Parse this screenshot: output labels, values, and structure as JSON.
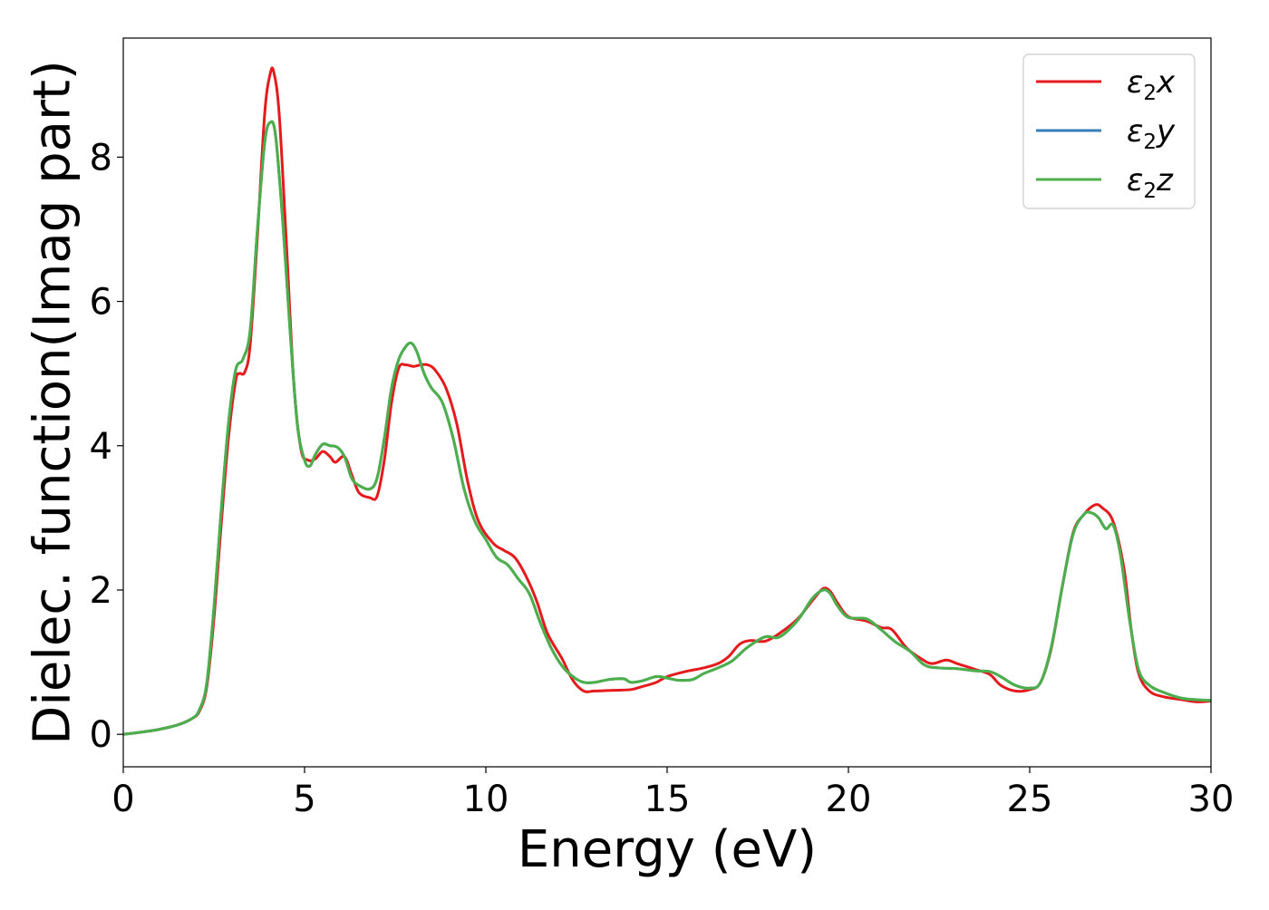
{
  "chart_data": {
    "type": "line",
    "title": "",
    "xlabel": "Energy (eV)",
    "ylabel": "Dielec. function(Imag part)",
    "xlim": [
      0,
      30
    ],
    "ylim": [
      -0.45,
      9.65
    ],
    "xticks": [
      0,
      5,
      10,
      15,
      20,
      25,
      30
    ],
    "yticks": [
      0,
      2,
      4,
      6,
      8
    ],
    "grid": false,
    "legend_position": "top-right",
    "series": [
      {
        "name": "ε₂x",
        "legend_base": "ε",
        "legend_sub": "2",
        "legend_suffix": "x",
        "color": "#e41a1c",
        "points": [
          [
            0,
            0
          ],
          [
            0.5,
            0.03
          ],
          [
            1.0,
            0.07
          ],
          [
            1.5,
            0.13
          ],
          [
            1.9,
            0.22
          ],
          [
            2.1,
            0.32
          ],
          [
            2.3,
            0.65
          ],
          [
            2.5,
            1.6
          ],
          [
            2.7,
            2.9
          ],
          [
            2.9,
            4.1
          ],
          [
            3.1,
            4.9
          ],
          [
            3.2,
            5.0
          ],
          [
            3.35,
            5.02
          ],
          [
            3.5,
            5.4
          ],
          [
            3.7,
            6.9
          ],
          [
            3.9,
            8.6
          ],
          [
            4.05,
            9.15
          ],
          [
            4.15,
            9.18
          ],
          [
            4.3,
            8.6
          ],
          [
            4.5,
            6.8
          ],
          [
            4.7,
            4.9
          ],
          [
            4.9,
            3.95
          ],
          [
            5.1,
            3.8
          ],
          [
            5.3,
            3.82
          ],
          [
            5.5,
            3.92
          ],
          [
            5.7,
            3.85
          ],
          [
            5.85,
            3.77
          ],
          [
            6.1,
            3.85
          ],
          [
            6.3,
            3.6
          ],
          [
            6.5,
            3.35
          ],
          [
            6.8,
            3.28
          ],
          [
            7.0,
            3.3
          ],
          [
            7.2,
            3.8
          ],
          [
            7.4,
            4.6
          ],
          [
            7.6,
            5.08
          ],
          [
            7.8,
            5.12
          ],
          [
            8.0,
            5.1
          ],
          [
            8.2,
            5.12
          ],
          [
            8.4,
            5.12
          ],
          [
            8.6,
            5.05
          ],
          [
            8.9,
            4.8
          ],
          [
            9.2,
            4.3
          ],
          [
            9.5,
            3.5
          ],
          [
            9.8,
            2.95
          ],
          [
            10.2,
            2.65
          ],
          [
            10.5,
            2.55
          ],
          [
            10.8,
            2.45
          ],
          [
            11.1,
            2.2
          ],
          [
            11.4,
            1.85
          ],
          [
            11.7,
            1.4
          ],
          [
            12.1,
            1.05
          ],
          [
            12.4,
            0.75
          ],
          [
            12.7,
            0.6
          ],
          [
            13.0,
            0.6
          ],
          [
            13.5,
            0.61
          ],
          [
            14.0,
            0.62
          ],
          [
            14.3,
            0.66
          ],
          [
            14.7,
            0.72
          ],
          [
            15.0,
            0.8
          ],
          [
            15.5,
            0.87
          ],
          [
            16.0,
            0.92
          ],
          [
            16.4,
            0.98
          ],
          [
            16.7,
            1.08
          ],
          [
            17.0,
            1.25
          ],
          [
            17.3,
            1.3
          ],
          [
            17.7,
            1.29
          ],
          [
            18.1,
            1.4
          ],
          [
            18.6,
            1.6
          ],
          [
            19.0,
            1.85
          ],
          [
            19.3,
            2.02
          ],
          [
            19.5,
            1.98
          ],
          [
            19.7,
            1.82
          ],
          [
            20.0,
            1.63
          ],
          [
            20.5,
            1.57
          ],
          [
            20.9,
            1.48
          ],
          [
            21.2,
            1.45
          ],
          [
            21.6,
            1.2
          ],
          [
            22.0,
            1.05
          ],
          [
            22.3,
            0.98
          ],
          [
            22.7,
            1.03
          ],
          [
            23.0,
            0.98
          ],
          [
            23.5,
            0.9
          ],
          [
            23.9,
            0.83
          ],
          [
            24.2,
            0.68
          ],
          [
            24.6,
            0.6
          ],
          [
            25.0,
            0.62
          ],
          [
            25.3,
            0.72
          ],
          [
            25.6,
            1.2
          ],
          [
            25.9,
            2.05
          ],
          [
            26.2,
            2.8
          ],
          [
            26.5,
            3.05
          ],
          [
            26.8,
            3.18
          ],
          [
            27.0,
            3.14
          ],
          [
            27.3,
            2.95
          ],
          [
            27.6,
            2.3
          ],
          [
            27.8,
            1.45
          ],
          [
            28.0,
            0.85
          ],
          [
            28.3,
            0.6
          ],
          [
            28.7,
            0.52
          ],
          [
            29.2,
            0.48
          ],
          [
            29.6,
            0.45
          ],
          [
            30.0,
            0.46
          ]
        ]
      },
      {
        "name": "ε₂y",
        "legend_base": "ε",
        "legend_sub": "2",
        "legend_suffix": "y",
        "color": "#377eb8",
        "points": [
          [
            0,
            0
          ],
          [
            0.5,
            0.03
          ],
          [
            1.0,
            0.07
          ],
          [
            1.5,
            0.13
          ],
          [
            1.9,
            0.22
          ],
          [
            2.1,
            0.34
          ],
          [
            2.3,
            0.7
          ],
          [
            2.5,
            1.75
          ],
          [
            2.7,
            3.1
          ],
          [
            2.9,
            4.3
          ],
          [
            3.1,
            5.05
          ],
          [
            3.3,
            5.2
          ],
          [
            3.5,
            5.6
          ],
          [
            3.7,
            7.0
          ],
          [
            3.9,
            8.2
          ],
          [
            4.05,
            8.48
          ],
          [
            4.2,
            8.3
          ],
          [
            4.4,
            7.1
          ],
          [
            4.6,
            5.6
          ],
          [
            4.8,
            4.3
          ],
          [
            5.0,
            3.8
          ],
          [
            5.15,
            3.72
          ],
          [
            5.3,
            3.88
          ],
          [
            5.5,
            4.02
          ],
          [
            5.7,
            4.0
          ],
          [
            5.9,
            3.98
          ],
          [
            6.1,
            3.85
          ],
          [
            6.3,
            3.55
          ],
          [
            6.5,
            3.45
          ],
          [
            6.8,
            3.4
          ],
          [
            7.0,
            3.55
          ],
          [
            7.2,
            4.1
          ],
          [
            7.4,
            4.8
          ],
          [
            7.6,
            5.2
          ],
          [
            7.8,
            5.38
          ],
          [
            7.95,
            5.42
          ],
          [
            8.1,
            5.3
          ],
          [
            8.3,
            5.0
          ],
          [
            8.5,
            4.8
          ],
          [
            8.8,
            4.6
          ],
          [
            9.1,
            4.1
          ],
          [
            9.4,
            3.4
          ],
          [
            9.7,
            2.95
          ],
          [
            10.0,
            2.7
          ],
          [
            10.3,
            2.45
          ],
          [
            10.6,
            2.35
          ],
          [
            10.9,
            2.15
          ],
          [
            11.2,
            1.95
          ],
          [
            11.5,
            1.55
          ],
          [
            11.8,
            1.2
          ],
          [
            12.1,
            0.95
          ],
          [
            12.4,
            0.8
          ],
          [
            12.7,
            0.72
          ],
          [
            13.0,
            0.72
          ],
          [
            13.4,
            0.76
          ],
          [
            13.8,
            0.77
          ],
          [
            14.0,
            0.72
          ],
          [
            14.3,
            0.74
          ],
          [
            14.7,
            0.8
          ],
          [
            15.0,
            0.78
          ],
          [
            15.3,
            0.75
          ],
          [
            15.7,
            0.76
          ],
          [
            16.0,
            0.84
          ],
          [
            16.4,
            0.92
          ],
          [
            16.8,
            1.02
          ],
          [
            17.2,
            1.2
          ],
          [
            17.7,
            1.35
          ],
          [
            18.1,
            1.35
          ],
          [
            18.6,
            1.58
          ],
          [
            19.0,
            1.88
          ],
          [
            19.3,
            2.0
          ],
          [
            19.5,
            1.95
          ],
          [
            19.7,
            1.78
          ],
          [
            20.0,
            1.62
          ],
          [
            20.5,
            1.6
          ],
          [
            20.9,
            1.45
          ],
          [
            21.3,
            1.28
          ],
          [
            21.7,
            1.15
          ],
          [
            22.1,
            0.96
          ],
          [
            22.5,
            0.92
          ],
          [
            23.0,
            0.91
          ],
          [
            23.5,
            0.88
          ],
          [
            23.9,
            0.87
          ],
          [
            24.2,
            0.8
          ],
          [
            24.6,
            0.68
          ],
          [
            25.0,
            0.64
          ],
          [
            25.3,
            0.72
          ],
          [
            25.6,
            1.22
          ],
          [
            25.9,
            2.05
          ],
          [
            26.2,
            2.78
          ],
          [
            26.5,
            3.05
          ],
          [
            26.7,
            3.07
          ],
          [
            26.9,
            3.0
          ],
          [
            27.1,
            2.85
          ],
          [
            27.3,
            2.9
          ],
          [
            27.5,
            2.5
          ],
          [
            27.75,
            1.6
          ],
          [
            28.0,
            0.9
          ],
          [
            28.3,
            0.68
          ],
          [
            28.7,
            0.58
          ],
          [
            29.2,
            0.5
          ],
          [
            29.6,
            0.48
          ],
          [
            30.0,
            0.47
          ]
        ]
      },
      {
        "name": "ε₂z",
        "legend_base": "ε",
        "legend_sub": "2",
        "legend_suffix": "z",
        "color": "#4daf4a",
        "points": [
          [
            0,
            0
          ],
          [
            0.5,
            0.03
          ],
          [
            1.0,
            0.07
          ],
          [
            1.5,
            0.13
          ],
          [
            1.9,
            0.22
          ],
          [
            2.1,
            0.34
          ],
          [
            2.3,
            0.7
          ],
          [
            2.5,
            1.75
          ],
          [
            2.7,
            3.1
          ],
          [
            2.9,
            4.3
          ],
          [
            3.1,
            5.05
          ],
          [
            3.3,
            5.2
          ],
          [
            3.5,
            5.6
          ],
          [
            3.7,
            7.0
          ],
          [
            3.9,
            8.2
          ],
          [
            4.05,
            8.48
          ],
          [
            4.2,
            8.3
          ],
          [
            4.4,
            7.1
          ],
          [
            4.6,
            5.6
          ],
          [
            4.8,
            4.3
          ],
          [
            5.0,
            3.8
          ],
          [
            5.15,
            3.72
          ],
          [
            5.3,
            3.88
          ],
          [
            5.5,
            4.02
          ],
          [
            5.7,
            4.0
          ],
          [
            5.9,
            3.98
          ],
          [
            6.1,
            3.85
          ],
          [
            6.3,
            3.55
          ],
          [
            6.5,
            3.45
          ],
          [
            6.8,
            3.4
          ],
          [
            7.0,
            3.55
          ],
          [
            7.2,
            4.1
          ],
          [
            7.4,
            4.8
          ],
          [
            7.6,
            5.2
          ],
          [
            7.8,
            5.38
          ],
          [
            7.95,
            5.42
          ],
          [
            8.1,
            5.3
          ],
          [
            8.3,
            5.0
          ],
          [
            8.5,
            4.8
          ],
          [
            8.8,
            4.6
          ],
          [
            9.1,
            4.1
          ],
          [
            9.4,
            3.4
          ],
          [
            9.7,
            2.95
          ],
          [
            10.0,
            2.7
          ],
          [
            10.3,
            2.45
          ],
          [
            10.6,
            2.35
          ],
          [
            10.9,
            2.15
          ],
          [
            11.2,
            1.95
          ],
          [
            11.5,
            1.55
          ],
          [
            11.8,
            1.2
          ],
          [
            12.1,
            0.95
          ],
          [
            12.4,
            0.8
          ],
          [
            12.7,
            0.72
          ],
          [
            13.0,
            0.72
          ],
          [
            13.4,
            0.76
          ],
          [
            13.8,
            0.77
          ],
          [
            14.0,
            0.72
          ],
          [
            14.3,
            0.74
          ],
          [
            14.7,
            0.8
          ],
          [
            15.0,
            0.78
          ],
          [
            15.3,
            0.75
          ],
          [
            15.7,
            0.76
          ],
          [
            16.0,
            0.84
          ],
          [
            16.4,
            0.92
          ],
          [
            16.8,
            1.02
          ],
          [
            17.2,
            1.2
          ],
          [
            17.7,
            1.35
          ],
          [
            18.1,
            1.35
          ],
          [
            18.6,
            1.58
          ],
          [
            19.0,
            1.88
          ],
          [
            19.3,
            2.0
          ],
          [
            19.5,
            1.95
          ],
          [
            19.7,
            1.78
          ],
          [
            20.0,
            1.62
          ],
          [
            20.5,
            1.6
          ],
          [
            20.9,
            1.45
          ],
          [
            21.3,
            1.28
          ],
          [
            21.7,
            1.15
          ],
          [
            22.1,
            0.96
          ],
          [
            22.5,
            0.92
          ],
          [
            23.0,
            0.91
          ],
          [
            23.5,
            0.88
          ],
          [
            23.9,
            0.87
          ],
          [
            24.2,
            0.8
          ],
          [
            24.6,
            0.68
          ],
          [
            25.0,
            0.64
          ],
          [
            25.3,
            0.72
          ],
          [
            25.6,
            1.22
          ],
          [
            25.9,
            2.05
          ],
          [
            26.2,
            2.78
          ],
          [
            26.5,
            3.05
          ],
          [
            26.7,
            3.07
          ],
          [
            26.9,
            3.0
          ],
          [
            27.1,
            2.85
          ],
          [
            27.3,
            2.9
          ],
          [
            27.5,
            2.5
          ],
          [
            27.75,
            1.6
          ],
          [
            28.0,
            0.9
          ],
          [
            28.3,
            0.68
          ],
          [
            28.7,
            0.58
          ],
          [
            29.2,
            0.5
          ],
          [
            29.6,
            0.48
          ],
          [
            30.0,
            0.47
          ]
        ]
      }
    ]
  }
}
